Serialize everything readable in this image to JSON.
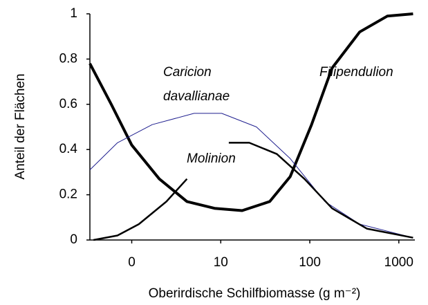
{
  "chart_data": {
    "type": "line",
    "xlabel": "Oberirdische Schilfbiomasse (g m⁻²)",
    "ylabel": "Anteil der Flächen",
    "annotations": [
      "Caricion",
      "davallianae",
      "Molinion",
      "Filipendulion"
    ],
    "xlim": [
      -0.47,
      3.18
    ],
    "xticks": [
      0,
      {
        "value": 1,
        "label": "10"
      },
      {
        "value": 2,
        "label": "100"
      },
      {
        "value": 3,
        "label": "1000"
      }
    ],
    "ylim": [
      0,
      1
    ],
    "yticks": [
      0,
      0.2,
      0.4,
      0.6,
      0.8,
      1
    ],
    "series": [
      {
        "color": "#000000",
        "width": 4,
        "x": [
          -0.47,
          -0.23,
          0,
          0.31,
          0.62,
          0.93,
          1.24,
          1.55,
          1.78,
          2.02,
          2.25,
          2.56,
          2.87,
          3.16
        ],
        "values": [
          0.78,
          0.6,
          0.42,
          0.27,
          0.17,
          0.14,
          0.13,
          0.17,
          0.28,
          0.51,
          0.76,
          0.92,
          0.99,
          1.0
        ]
      },
      {
        "color": "#1f1f8f",
        "width": 1,
        "x": [
          -0.47,
          -0.16,
          0.23,
          0.7,
          1.01,
          1.4,
          1.78,
          2.17,
          2.56,
          3.16
        ],
        "values": [
          0.31,
          0.43,
          0.51,
          0.56,
          0.56,
          0.5,
          0.36,
          0.17,
          0.07,
          0.01
        ]
      },
      {
        "color": "#000000",
        "width": 2.5,
        "x": [
          -0.43,
          -0.16,
          0.08,
          0.39,
          0.62,
          0.85,
          1.09,
          1.32,
          1.63,
          1.94,
          2.25,
          2.64,
          3.16
        ],
        "values": [
          0,
          0.02,
          0.07,
          0.17,
          0.27,
          null,
          0.43,
          0.43,
          0.38,
          0.27,
          0.14,
          0.05,
          0.01
        ]
      }
    ]
  }
}
